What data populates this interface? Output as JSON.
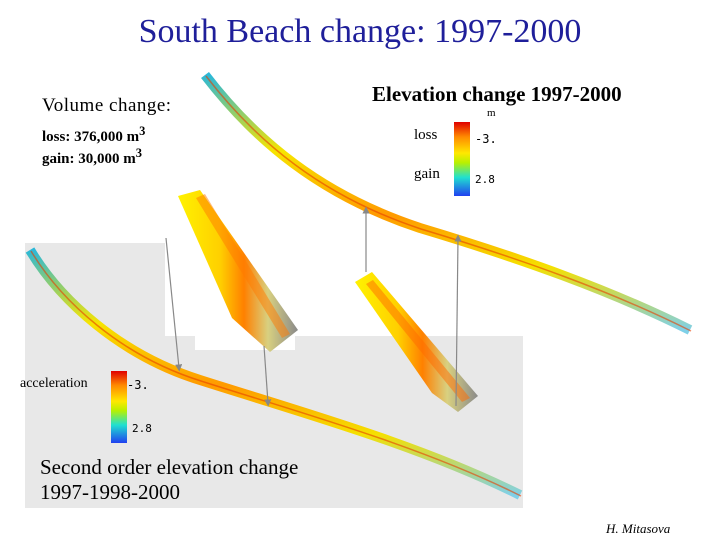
{
  "title": "South Beach change: 1997-2000",
  "volume": {
    "heading": "Volume change:",
    "loss": "loss: 376,000 m",
    "gain": "gain: 30,000 m",
    "unit_sup": "3"
  },
  "elevation": {
    "heading": "Elevation change 1997-2000",
    "unit": "m",
    "loss_label": "loss",
    "gain_label": "gain",
    "scale_max": "-3.",
    "scale_min": "2.8"
  },
  "acceleration": {
    "label": "acceleration",
    "scale_max": "-3.",
    "scale_min": "2.8"
  },
  "second_order": {
    "line1": "Second order elevation change",
    "line2": "1997-1998-2000"
  },
  "credit": "H. Mitasova",
  "colors": {
    "title": "#1f1f9a",
    "loss": "#e00000",
    "neutral": "#ffe800",
    "gain": "#2040f0"
  }
}
